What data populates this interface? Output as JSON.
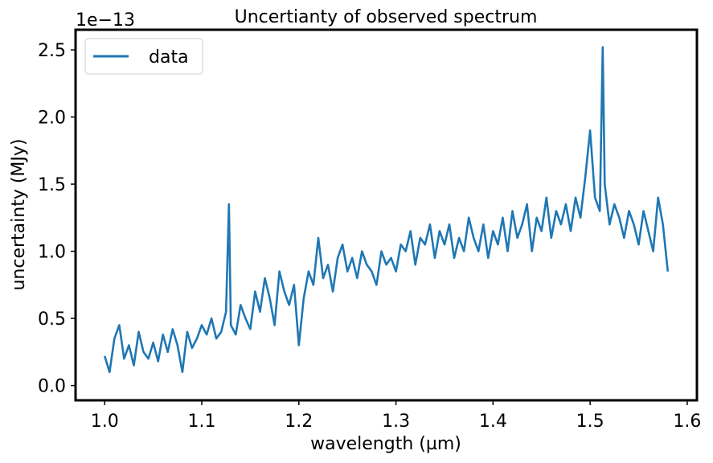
{
  "chart_data": {
    "type": "line",
    "title": "Uncertianty of observed spectrum",
    "xlabel": "wavelength (µm)",
    "ylabel": "uncertainty (MJy)",
    "offset_text": "1e−13",
    "y_scale_factor": 1e-13,
    "xlim": [
      0.97,
      1.61
    ],
    "ylim": [
      -0.11,
      2.65
    ],
    "x_ticks": [
      1.0,
      1.1,
      1.2,
      1.3,
      1.4,
      1.5,
      1.6
    ],
    "x_tick_labels": [
      "1.0",
      "1.1",
      "1.2",
      "1.3",
      "1.4",
      "1.5",
      "1.6"
    ],
    "y_ticks": [
      0.0,
      0.5,
      1.0,
      1.5,
      2.0,
      2.5
    ],
    "y_tick_labels": [
      "0.0",
      "0.5",
      "1.0",
      "1.5",
      "2.0",
      "2.5"
    ],
    "grid": false,
    "legend": {
      "placement": "top-left",
      "entries": [
        "data"
      ]
    },
    "series": [
      {
        "name": "data",
        "color": "#1f77b4",
        "x": [
          1.0,
          1.005,
          1.01,
          1.015,
          1.02,
          1.025,
          1.03,
          1.035,
          1.04,
          1.045,
          1.05,
          1.055,
          1.06,
          1.065,
          1.07,
          1.075,
          1.08,
          1.085,
          1.09,
          1.095,
          1.1,
          1.105,
          1.11,
          1.115,
          1.12,
          1.125,
          1.128,
          1.13,
          1.135,
          1.14,
          1.145,
          1.15,
          1.155,
          1.16,
          1.165,
          1.17,
          1.175,
          1.18,
          1.185,
          1.19,
          1.195,
          1.2,
          1.205,
          1.21,
          1.215,
          1.22,
          1.225,
          1.23,
          1.235,
          1.24,
          1.245,
          1.25,
          1.255,
          1.26,
          1.265,
          1.27,
          1.275,
          1.28,
          1.285,
          1.29,
          1.295,
          1.3,
          1.305,
          1.31,
          1.315,
          1.32,
          1.325,
          1.33,
          1.335,
          1.34,
          1.345,
          1.35,
          1.355,
          1.36,
          1.365,
          1.37,
          1.375,
          1.38,
          1.385,
          1.39,
          1.395,
          1.4,
          1.405,
          1.41,
          1.415,
          1.42,
          1.425,
          1.43,
          1.435,
          1.44,
          1.445,
          1.45,
          1.455,
          1.46,
          1.465,
          1.47,
          1.475,
          1.48,
          1.485,
          1.49,
          1.495,
          1.5,
          1.505,
          1.51,
          1.513,
          1.515,
          1.52,
          1.525,
          1.53,
          1.535,
          1.54,
          1.545,
          1.55,
          1.555,
          1.56,
          1.565,
          1.57,
          1.575,
          1.58
        ],
        "values": [
          0.22,
          0.1,
          0.35,
          0.45,
          0.2,
          0.3,
          0.15,
          0.4,
          0.25,
          0.2,
          0.32,
          0.18,
          0.38,
          0.25,
          0.42,
          0.3,
          0.1,
          0.4,
          0.28,
          0.35,
          0.45,
          0.38,
          0.5,
          0.35,
          0.4,
          0.55,
          1.35,
          0.45,
          0.38,
          0.6,
          0.5,
          0.42,
          0.7,
          0.55,
          0.8,
          0.65,
          0.45,
          0.85,
          0.7,
          0.6,
          0.75,
          0.3,
          0.65,
          0.85,
          0.75,
          1.1,
          0.8,
          0.9,
          0.7,
          0.95,
          1.05,
          0.85,
          0.95,
          0.8,
          1.0,
          0.9,
          0.85,
          0.75,
          1.0,
          0.9,
          0.95,
          0.85,
          1.05,
          1.0,
          1.15,
          0.9,
          1.1,
          1.05,
          1.2,
          0.95,
          1.15,
          1.05,
          1.2,
          0.95,
          1.1,
          1.0,
          1.25,
          1.1,
          1.0,
          1.2,
          0.95,
          1.15,
          1.05,
          1.25,
          1.0,
          1.3,
          1.1,
          1.2,
          1.35,
          1.0,
          1.25,
          1.15,
          1.4,
          1.1,
          1.3,
          1.2,
          1.35,
          1.15,
          1.4,
          1.25,
          1.55,
          1.9,
          1.4,
          1.3,
          2.52,
          1.5,
          1.2,
          1.35,
          1.25,
          1.1,
          1.3,
          1.2,
          1.05,
          1.3,
          1.15,
          1.0,
          1.4,
          1.2,
          0.85
        ]
      }
    ]
  }
}
